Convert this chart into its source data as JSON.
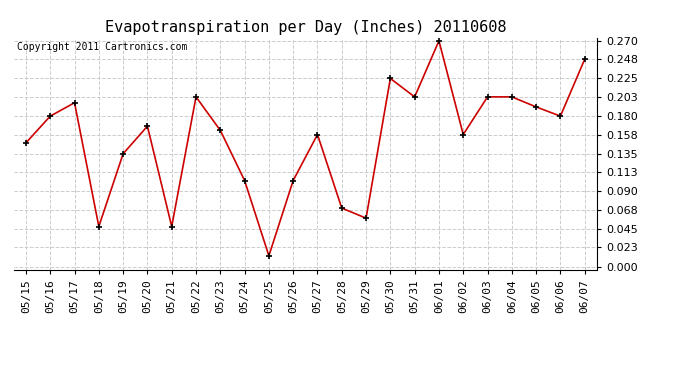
{
  "title": "Evapotranspiration per Day (Inches) 20110608",
  "copyright": "Copyright 2011 Cartronics.com",
  "dates": [
    "05/15",
    "05/16",
    "05/17",
    "05/18",
    "05/19",
    "05/20",
    "05/21",
    "05/22",
    "05/23",
    "05/24",
    "05/25",
    "05/26",
    "05/27",
    "05/28",
    "05/29",
    "05/30",
    "05/31",
    "06/01",
    "06/02",
    "06/03",
    "06/04",
    "06/05",
    "06/06",
    "06/07"
  ],
  "values": [
    0.148,
    0.18,
    0.196,
    0.048,
    0.135,
    0.168,
    0.048,
    0.203,
    0.163,
    0.103,
    0.013,
    0.103,
    0.158,
    0.07,
    0.058,
    0.225,
    0.203,
    0.27,
    0.158,
    0.203,
    0.203,
    0.191,
    0.18,
    0.248
  ],
  "line_color": "#cc0000",
  "marker": "+",
  "marker_color": "#000000",
  "bg_color": "#ffffff",
  "grid_color": "#cccccc",
  "ylim": [
    -0.004,
    0.274
  ],
  "yticks": [
    0.0,
    0.023,
    0.045,
    0.068,
    0.09,
    0.113,
    0.135,
    0.158,
    0.18,
    0.203,
    0.225,
    0.248,
    0.27
  ],
  "title_fontsize": 11,
  "copyright_fontsize": 7,
  "tick_fontsize": 8,
  "fig_width": 6.9,
  "fig_height": 3.75,
  "dpi": 100
}
